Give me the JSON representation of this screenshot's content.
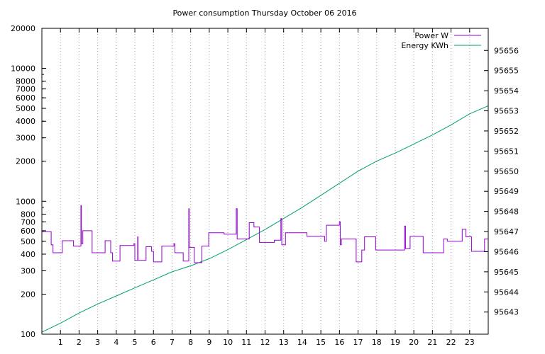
{
  "chart_data": {
    "type": "line",
    "title": "Power consumption Thursday October 06 2016",
    "xlabel": "",
    "ylabel": "",
    "y2label": "",
    "xlim": [
      0,
      24
    ],
    "x_ticks": [
      1,
      2,
      3,
      4,
      5,
      6,
      7,
      8,
      9,
      10,
      11,
      12,
      13,
      14,
      15,
      16,
      17,
      18,
      19,
      20,
      21,
      22,
      23
    ],
    "ylim": [
      100,
      20000
    ],
    "y_scale": "log",
    "y_ticks": [
      {
        "value": 100,
        "label": "100"
      },
      {
        "value": 200,
        "label": "200"
      },
      {
        "value": 300,
        "label": "300"
      },
      {
        "value": 400,
        "label": "400"
      },
      {
        "value": 500,
        "label": "500"
      },
      {
        "value": 600,
        "label": "600"
      },
      {
        "value": 700,
        "label": "700"
      },
      {
        "value": 800,
        "label": "800"
      },
      {
        "value": 1000,
        "label": "1000"
      },
      {
        "value": 2000,
        "label": "2000"
      },
      {
        "value": 3000,
        "label": "3000"
      },
      {
        "value": 4000,
        "label": "4000"
      },
      {
        "value": 5000,
        "label": "5000"
      },
      {
        "value": 6000,
        "label": "6000"
      },
      {
        "value": 7000,
        "label": "7000"
      },
      {
        "value": 8000,
        "label": "8000"
      },
      {
        "value": 10000,
        "label": "10000"
      },
      {
        "value": 20000,
        "label": "20000"
      }
    ],
    "y2lim": [
      95641.9,
      95657.1
    ],
    "y2_ticks": [
      95643,
      95644,
      95645,
      95646,
      95647,
      95648,
      95649,
      95650,
      95651,
      95652,
      95653,
      95654,
      95655,
      95656
    ],
    "grid": "x-only",
    "legend_position": "top-right",
    "colors": {
      "power": "#9400d3",
      "energy": "#009e73"
    },
    "series": [
      {
        "name": "Power W",
        "axis": "y",
        "style": "step",
        "points": [
          [
            0.0,
            590
          ],
          [
            0.5,
            470
          ],
          [
            0.6,
            410
          ],
          [
            1.1,
            505
          ],
          [
            1.7,
            460
          ],
          [
            2.1,
            930
          ],
          [
            2.12,
            480
          ],
          [
            2.2,
            600
          ],
          [
            2.7,
            410
          ],
          [
            3.4,
            505
          ],
          [
            3.7,
            410
          ],
          [
            3.8,
            355
          ],
          [
            4.2,
            465
          ],
          [
            4.95,
            480
          ],
          [
            5.0,
            360
          ],
          [
            5.15,
            540
          ],
          [
            5.17,
            360
          ],
          [
            5.6,
            455
          ],
          [
            5.9,
            420
          ],
          [
            6.0,
            350
          ],
          [
            6.45,
            460
          ],
          [
            7.1,
            480
          ],
          [
            7.15,
            410
          ],
          [
            7.6,
            355
          ],
          [
            7.9,
            880
          ],
          [
            7.92,
            450
          ],
          [
            8.2,
            345
          ],
          [
            8.6,
            460
          ],
          [
            8.97,
            580
          ],
          [
            9.8,
            565
          ],
          [
            10.45,
            880
          ],
          [
            10.5,
            520
          ],
          [
            11.15,
            690
          ],
          [
            11.4,
            640
          ],
          [
            11.7,
            490
          ],
          [
            12.5,
            510
          ],
          [
            12.85,
            740
          ],
          [
            12.9,
            470
          ],
          [
            13.1,
            580
          ],
          [
            14.25,
            545
          ],
          [
            15.2,
            500
          ],
          [
            15.3,
            660
          ],
          [
            16.0,
            700
          ],
          [
            16.05,
            470
          ],
          [
            16.1,
            520
          ],
          [
            16.9,
            350
          ],
          [
            17.2,
            430
          ],
          [
            17.35,
            540
          ],
          [
            17.95,
            430
          ],
          [
            19.5,
            650
          ],
          [
            19.55,
            440
          ],
          [
            19.8,
            545
          ],
          [
            20.5,
            410
          ],
          [
            21.6,
            520
          ],
          [
            21.8,
            500
          ],
          [
            22.6,
            615
          ],
          [
            22.8,
            540
          ],
          [
            23.1,
            420
          ],
          [
            23.8,
            520
          ],
          [
            24.0,
            520
          ]
        ]
      },
      {
        "name": "Energy KWh",
        "axis": "y2",
        "style": "line",
        "points": [
          [
            0.0,
            95642.0
          ],
          [
            1.0,
            95642.45
          ],
          [
            2.0,
            95642.95
          ],
          [
            3.0,
            95643.4
          ],
          [
            4.0,
            95643.8
          ],
          [
            5.0,
            95644.2
          ],
          [
            6.0,
            95644.6
          ],
          [
            7.0,
            95645.0
          ],
          [
            8.0,
            95645.3
          ],
          [
            9.0,
            95645.65
          ],
          [
            10.0,
            95646.1
          ],
          [
            11.0,
            95646.6
          ],
          [
            12.0,
            95647.1
          ],
          [
            13.0,
            95647.65
          ],
          [
            14.0,
            95648.2
          ],
          [
            15.0,
            95648.8
          ],
          [
            16.0,
            95649.4
          ],
          [
            17.0,
            95650.0
          ],
          [
            18.0,
            95650.5
          ],
          [
            19.0,
            95650.9
          ],
          [
            20.0,
            95651.35
          ],
          [
            21.0,
            95651.8
          ],
          [
            22.0,
            95652.3
          ],
          [
            23.0,
            95652.85
          ],
          [
            24.0,
            95653.25
          ]
        ]
      }
    ]
  }
}
